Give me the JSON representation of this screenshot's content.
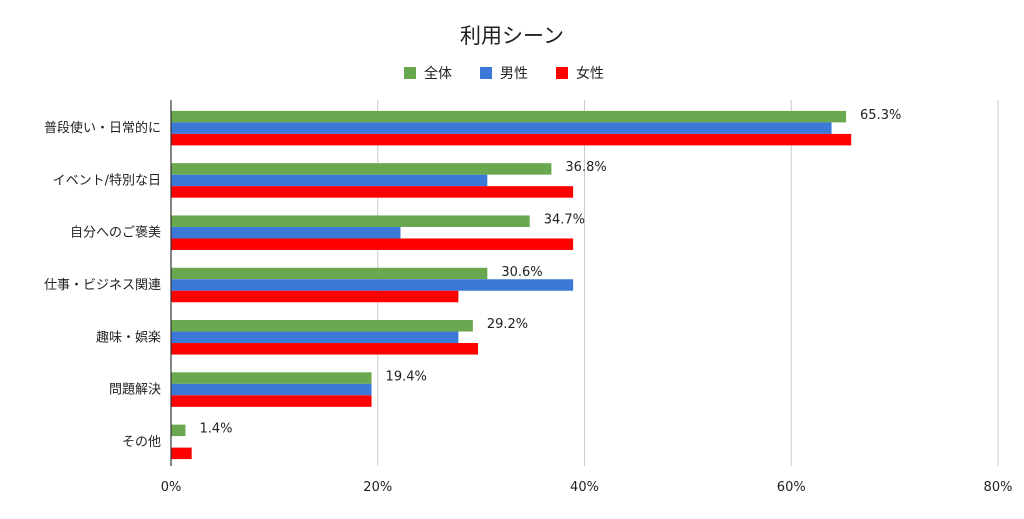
{
  "chart_data": {
    "type": "bar",
    "orientation": "horizontal",
    "title": "利用シーン",
    "categories": [
      "普段使い・日常的に",
      "イベント/特別な日",
      "自分へのご褒美",
      "仕事・ビジネス関連",
      "趣味・娯楽",
      "問題解決",
      "その他"
    ],
    "series": [
      {
        "name": "全体",
        "color": "#6aa84f",
        "values": [
          65.3,
          36.8,
          34.7,
          30.6,
          29.2,
          19.4,
          1.4
        ]
      },
      {
        "name": "男性",
        "color": "#3c78d8",
        "values": [
          63.9,
          30.6,
          22.2,
          38.9,
          27.8,
          19.4,
          0
        ]
      },
      {
        "name": "女性",
        "color": "#ff0000",
        "values": [
          65.8,
          38.9,
          38.9,
          27.8,
          29.7,
          19.4,
          2.0
        ]
      }
    ],
    "data_labels": [
      "65.3%",
      "36.8%",
      "34.7%",
      "30.6%",
      "29.2%",
      "19.4%",
      "1.4%"
    ],
    "xlim": [
      0,
      80
    ],
    "x_ticks": [
      0,
      20,
      40,
      60,
      80
    ],
    "x_tick_labels": [
      "0%",
      "20%",
      "40%",
      "60%",
      "80%"
    ],
    "grid": true,
    "legend_position": "top-center",
    "xlabel": "",
    "ylabel": ""
  }
}
